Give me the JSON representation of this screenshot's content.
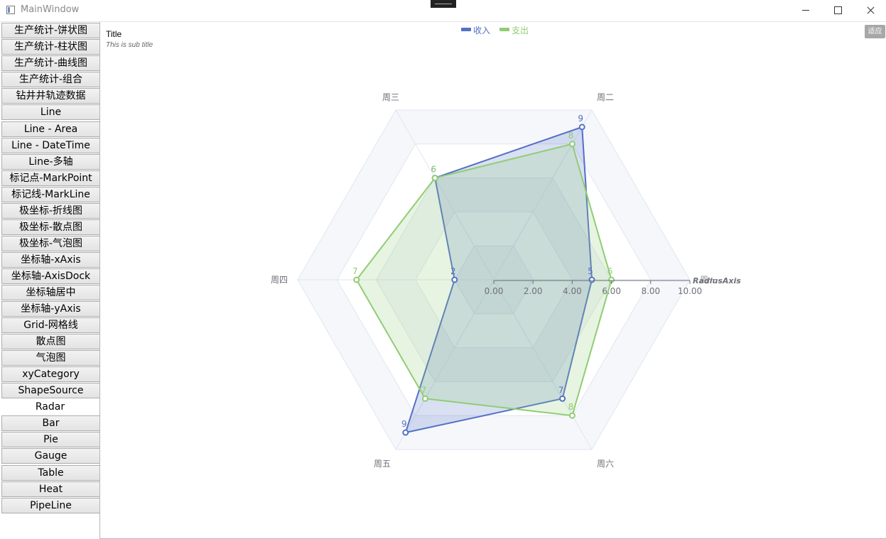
{
  "window": {
    "title": "MainWindow"
  },
  "sidebar": {
    "items": [
      {
        "label": "生产统计-饼状图"
      },
      {
        "label": "生产统计-柱状图"
      },
      {
        "label": "生产统计-曲线图"
      },
      {
        "label": "生产统计-组合"
      },
      {
        "label": "钻井井轨迹数据"
      },
      {
        "label": "Line"
      },
      {
        "label": "Line - Area"
      },
      {
        "label": "Line - DateTime"
      },
      {
        "label": "Line-多轴"
      },
      {
        "label": "标记点-MarkPoint"
      },
      {
        "label": "标记线-MarkLine"
      },
      {
        "label": "极坐标-折线图"
      },
      {
        "label": "极坐标-散点图"
      },
      {
        "label": "极坐标-气泡图"
      },
      {
        "label": "坐标轴-xAxis"
      },
      {
        "label": "坐标轴-AxisDock"
      },
      {
        "label": "坐标轴居中"
      },
      {
        "label": "坐标轴-yAxis"
      },
      {
        "label": "Grid-网格线"
      },
      {
        "label": "散点图"
      },
      {
        "label": "气泡图"
      },
      {
        "label": "xyCategory"
      },
      {
        "label": "ShapeSource"
      },
      {
        "label": "Radar",
        "selected": true
      },
      {
        "label": "Bar"
      },
      {
        "label": "Pie"
      },
      {
        "label": "Gauge"
      },
      {
        "label": "Table"
      },
      {
        "label": "Heat"
      },
      {
        "label": "PipeLine"
      }
    ]
  },
  "toolbar": {
    "fit_label": "适应"
  },
  "chart_data": {
    "type": "radar",
    "title": "Title",
    "subtitle": "This is sub title",
    "indicators": [
      "周一",
      "周二",
      "周三",
      "周四",
      "周五",
      "周六"
    ],
    "radius_axis": {
      "name": "RadiusAxis",
      "min": 0,
      "max": 10,
      "ticks": [
        "0.00",
        "2.00",
        "4.00",
        "6.00",
        "8.00",
        "10.00"
      ]
    },
    "series": [
      {
        "name": "收入",
        "color": "#5470c6",
        "values": [
          5,
          9,
          6,
          2,
          9,
          7
        ]
      },
      {
        "name": "支出",
        "color": "#91cc75",
        "values": [
          6,
          8,
          6,
          7,
          7,
          8
        ]
      }
    ],
    "legend_position": "top-center",
    "split_area_color": "#f5f7fb",
    "grid_color": "#e0e6f1",
    "axis_label_color": "#6e7079"
  }
}
